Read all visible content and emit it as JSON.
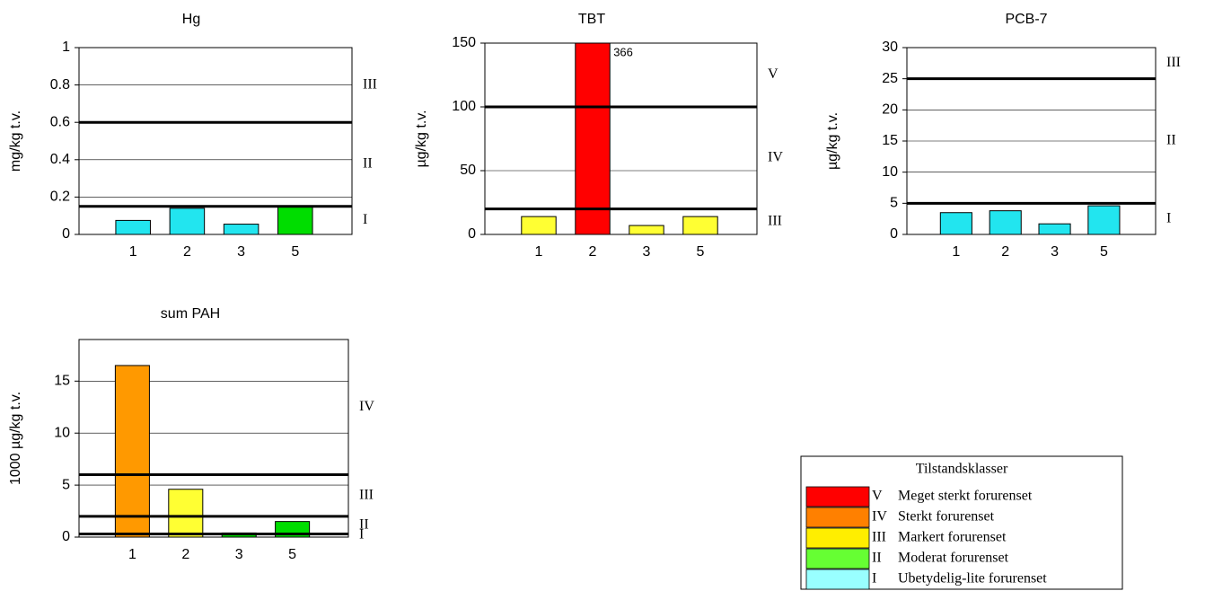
{
  "chart_data": [
    {
      "type": "bar",
      "title": "Hg",
      "y_label": "mg/kg t.v.",
      "categories": [
        "1",
        "2",
        "3",
        "5"
      ],
      "values": [
        0.075,
        0.14,
        0.055,
        0.15
      ],
      "colors": [
        "#22e5ef",
        "#22e5ef",
        "#22e5ef",
        "#00dd00"
      ],
      "ylim": [
        0,
        1
      ],
      "yticks": [
        0,
        0.2,
        0.4,
        0.6,
        0.8,
        1
      ],
      "grid": true,
      "thresholds": [
        0.15,
        0.6
      ],
      "class_labels": [
        "I",
        "II",
        "III"
      ]
    },
    {
      "type": "bar",
      "title": "TBT",
      "y_label": "µg/kg t.v.",
      "categories": [
        "1",
        "2",
        "3",
        "5"
      ],
      "values": [
        14,
        366,
        7,
        14
      ],
      "value_labels": [
        null,
        "366",
        null,
        null
      ],
      "colors": [
        "#ffff33",
        "#ff0000",
        "#ffff33",
        "#ffff33"
      ],
      "ylim": [
        0,
        150
      ],
      "yticks": [
        0,
        50,
        100,
        150
      ],
      "grid": true,
      "thresholds": [
        20,
        100
      ],
      "class_labels": [
        "III",
        "IV",
        "V"
      ]
    },
    {
      "type": "bar",
      "title": "PCB-7",
      "y_label": "µg/kg t.v.",
      "categories": [
        "1",
        "2",
        "3",
        "5"
      ],
      "values": [
        3.5,
        3.8,
        1.7,
        4.6
      ],
      "colors": [
        "#22e5ef",
        "#22e5ef",
        "#22e5ef",
        "#22e5ef"
      ],
      "ylim": [
        0,
        30
      ],
      "yticks": [
        0,
        5,
        10,
        15,
        20,
        25,
        30
      ],
      "grid": true,
      "thresholds": [
        5,
        25
      ],
      "class_labels": [
        "I",
        "II",
        "III"
      ]
    },
    {
      "type": "bar",
      "title": "sum PAH",
      "y_label": "1000 µg/kg t.v.",
      "categories": [
        "1",
        "2",
        "3",
        "5"
      ],
      "values": [
        16.5,
        4.6,
        0.4,
        1.5
      ],
      "colors": [
        "#ff9900",
        "#ffff33",
        "#00dd00",
        "#00dd00"
      ],
      "ylim": [
        0,
        19
      ],
      "yticks": [
        0,
        5,
        10,
        15
      ],
      "grid": true,
      "thresholds": [
        0.3,
        2,
        6
      ],
      "class_labels": [
        "I",
        "II",
        "III",
        "IV"
      ]
    }
  ],
  "legend": {
    "title": "Tilstandsklasser",
    "items": [
      {
        "class": "V",
        "label": "Meget sterkt forurenset",
        "color": "#ff0000"
      },
      {
        "class": "IV",
        "label": "Sterkt forurenset",
        "color": "#ff8000"
      },
      {
        "class": "III",
        "label": "Markert forurenset",
        "color": "#ffee00"
      },
      {
        "class": "II",
        "label": "Moderat forurenset",
        "color": "#66ff33"
      },
      {
        "class": "I",
        "label": "Ubetydelig-lite forurenset",
        "color": "#99ffff"
      }
    ]
  }
}
